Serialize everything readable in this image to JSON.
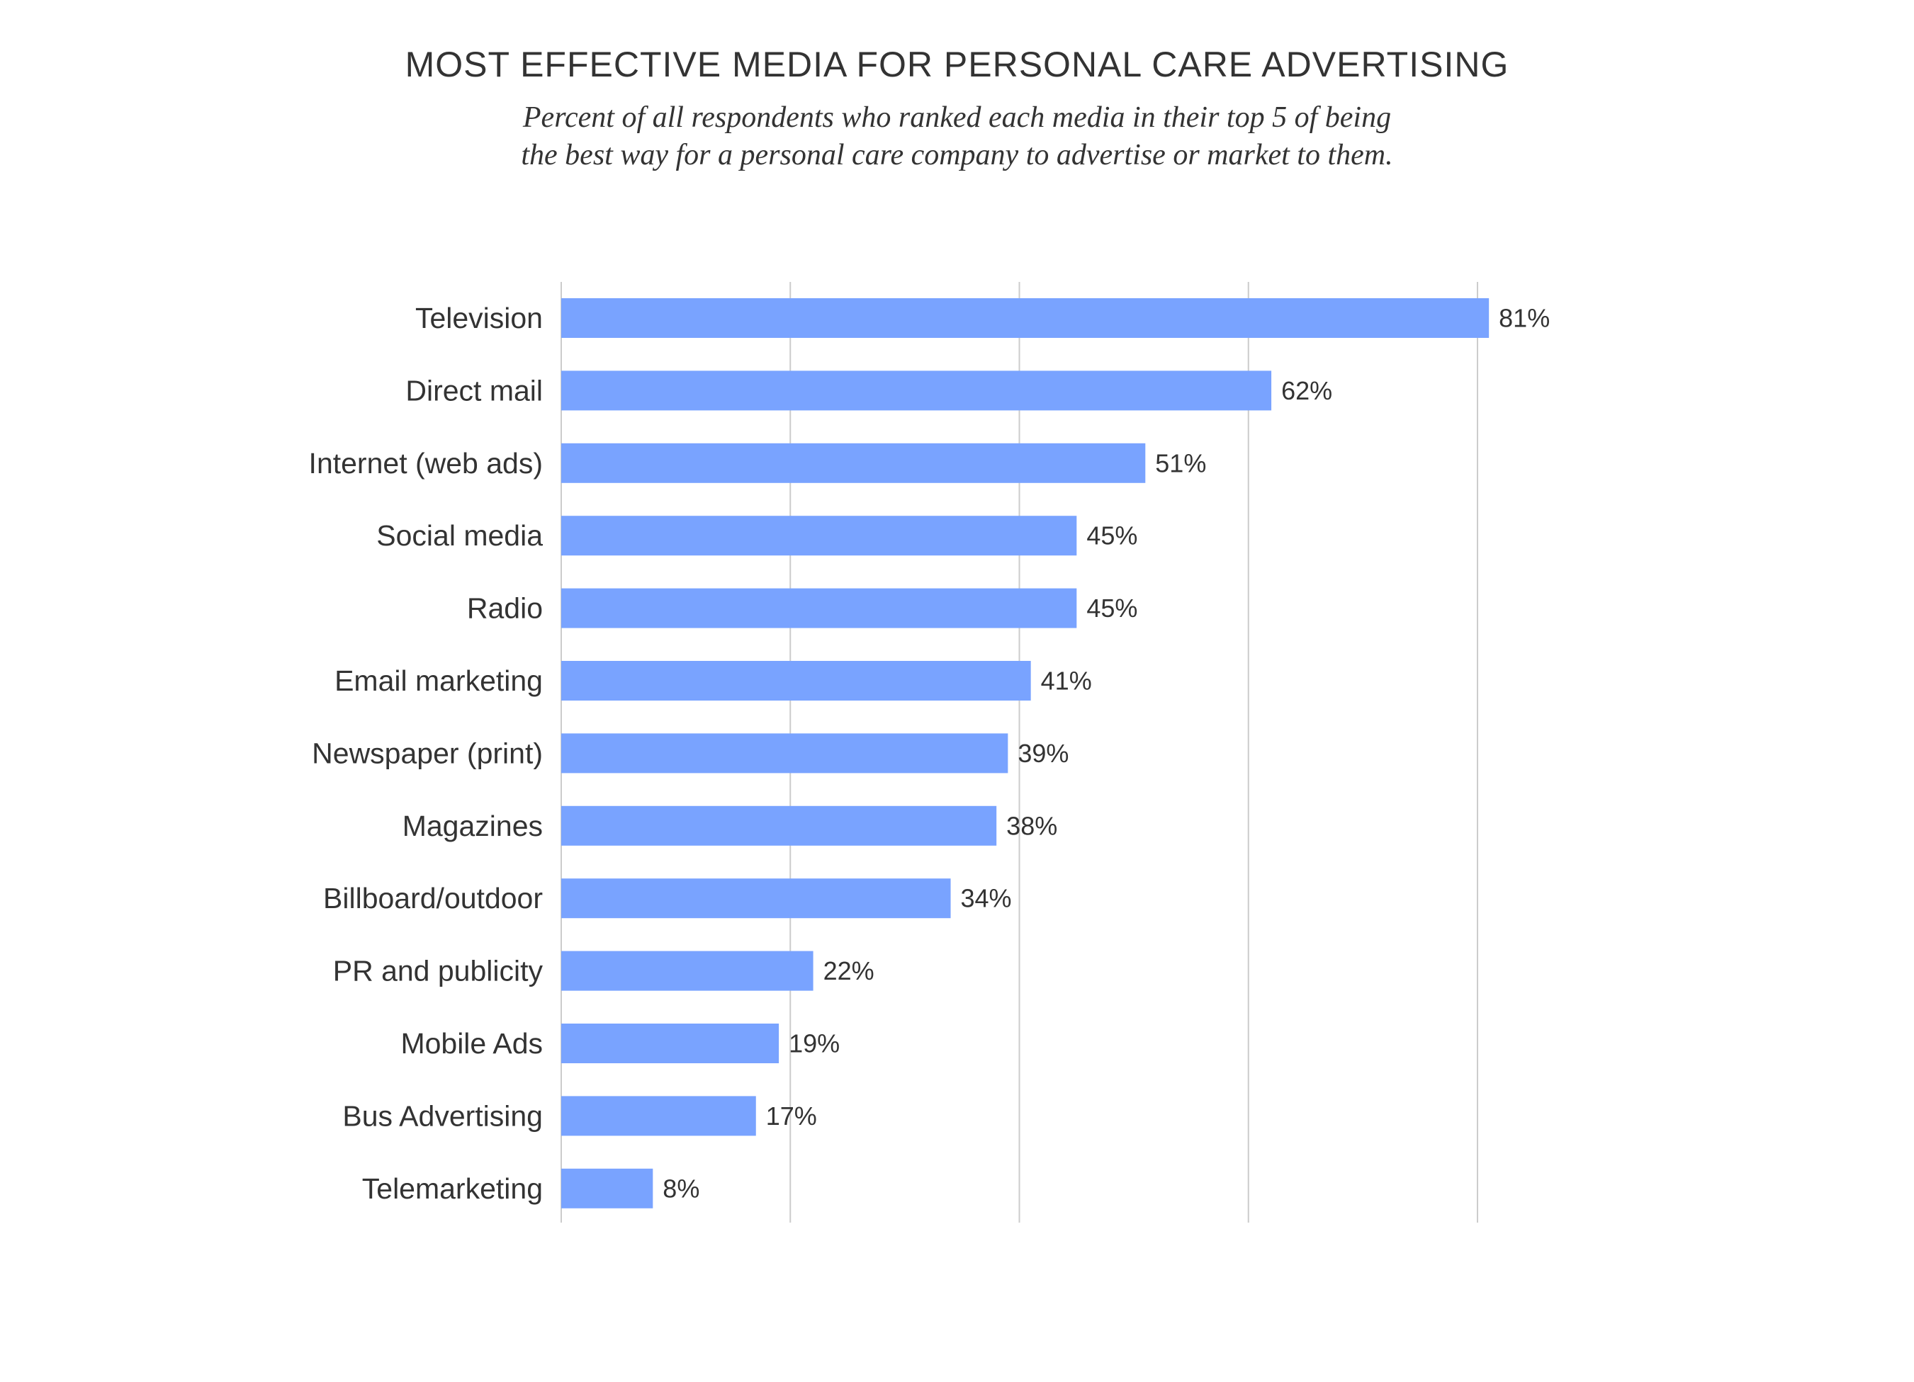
{
  "chart_data": {
    "type": "bar",
    "orientation": "horizontal",
    "title": "MOST EFFECTIVE MEDIA FOR PERSONAL CARE ADVERTISING",
    "subtitle": [
      "Percent of all respondents who ranked each media in their top 5 of being",
      "the best way for a personal care company to advertise or market to them."
    ],
    "categories": [
      "Television",
      "Direct mail",
      "Internet (web ads)",
      "Social media",
      "Radio",
      "Email marketing",
      "Newspaper (print)",
      "Magazines",
      "Billboard/outdoor",
      "PR and publicity",
      "Mobile Ads",
      "Bus Advertising",
      "Telemarketing"
    ],
    "values": [
      81,
      62,
      51,
      45,
      45,
      41,
      39,
      38,
      34,
      22,
      19,
      17,
      8
    ],
    "value_labels": [
      "81%",
      "62%",
      "51%",
      "45%",
      "45%",
      "41%",
      "39%",
      "38%",
      "34%",
      "22%",
      "19%",
      "17%",
      "8%"
    ],
    "xlim": [
      0,
      80
    ],
    "grid": true,
    "legend": "none",
    "bar_color": "#79a3ff",
    "grid_color": "#cccccc"
  }
}
